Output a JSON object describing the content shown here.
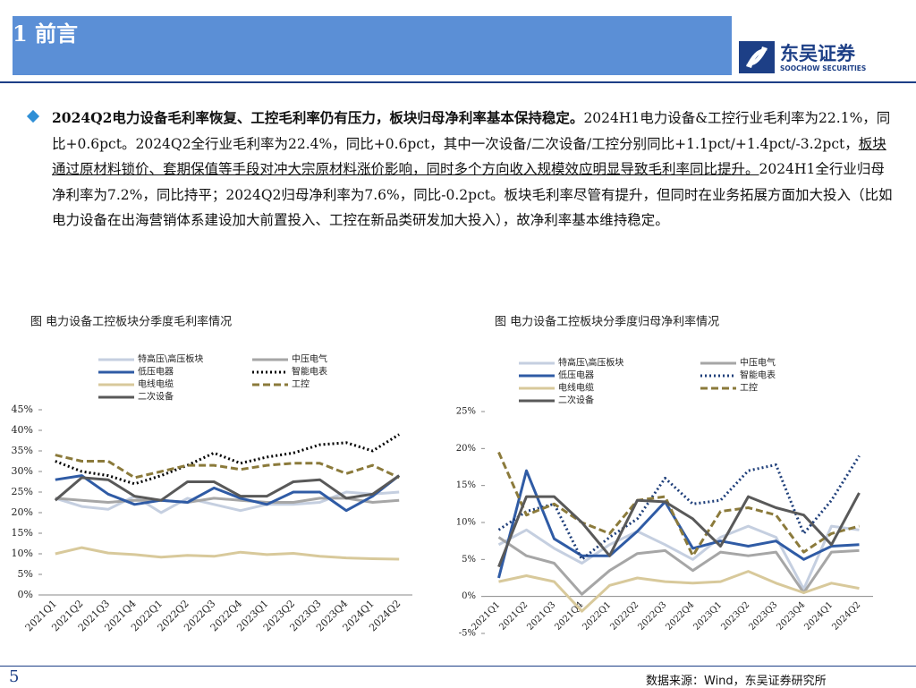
{
  "header": {
    "title": "1 前言",
    "logo_cn": "东吴证券",
    "logo_en": "SOOCHOW SECURITIES"
  },
  "paragraph": {
    "bold": "2024Q2电力设备毛利率恢复、工控毛利率仍有压力，板块归母净利率基本保持稳定。",
    "text1": "2024H1电力设备&工控行业毛利率为22.1%，同比+0.6pct。2024Q2全行业毛利率为22.4%，同比+0.6pct，其中一次设备/二次设备/工控分别同比+1.1pct/+1.4pct/-3.2pct，",
    "underlined": "板块通过原材料锁价、套期保值等手段对冲大宗原材料涨价影响，同时多个方向收入规模效应明显导致毛利率同比提升。",
    "text2": "2024H1全行业归母净利率为7.2%，同比持平；2024Q2归母净利率为7.6%，同比-0.2pct。板块毛利率尽管有提升，但同时在业务拓展方面加大投入（比如电力设备在出海营销体系建设加大前置投入、工控在新品类研发加大投入），故净利率基本维持稳定。"
  },
  "chart_data": [
    {
      "type": "line",
      "title": "图 电力设备工控板块分季度毛利率情况",
      "categories": [
        "2021Q1",
        "2021Q2",
        "2021Q3",
        "2021Q4",
        "2022Q1",
        "2022Q2",
        "2022Q3",
        "2022Q4",
        "2023Q1",
        "2023Q2",
        "2023Q3",
        "2023Q4",
        "2024Q1",
        "2024Q2"
      ],
      "ylim": [
        0,
        45
      ],
      "yticks": [
        {
          "value": 0,
          "label": "0%"
        },
        {
          "value": 5,
          "label": "5%"
        },
        {
          "value": 10,
          "label": "10%"
        },
        {
          "value": 15,
          "label": "15%"
        },
        {
          "value": 20,
          "label": "20%"
        },
        {
          "value": 25,
          "label": "25%"
        },
        {
          "value": 30,
          "label": "30%"
        },
        {
          "value": 35,
          "label": "35%"
        },
        {
          "value": 40,
          "label": "40%"
        },
        {
          "value": 45,
          "label": "45%"
        }
      ],
      "series": [
        {
          "name": "特高压\\高压板块",
          "color": "#c5cfe0",
          "style": "solid",
          "values": [
            23.5,
            21.5,
            20.8,
            24,
            20,
            23.5,
            22,
            20.5,
            22,
            22,
            22.5,
            25,
            24.5,
            25
          ]
        },
        {
          "name": "中压电气",
          "color": "#a6a6a6",
          "style": "solid",
          "values": [
            23.5,
            23,
            22.5,
            23,
            23,
            22.5,
            23.5,
            23,
            22.5,
            22.5,
            23.5,
            23.5,
            22.5,
            23
          ]
        },
        {
          "name": "低压电器",
          "color": "#2f5ba5",
          "style": "solid",
          "values": [
            28,
            29,
            24.5,
            22,
            23,
            22.5,
            26,
            23.5,
            22,
            25,
            25,
            20.5,
            24,
            29
          ]
        },
        {
          "name": "智能电表",
          "color": "#000000",
          "style": "dotted",
          "values": [
            32.5,
            30,
            29,
            27,
            29,
            31.5,
            34.5,
            32,
            33.5,
            34.5,
            36.5,
            37,
            35,
            39
          ]
        },
        {
          "name": "电线电缆",
          "color": "#d8c99b",
          "style": "solid",
          "values": [
            10,
            11.5,
            10.2,
            9.8,
            9.2,
            9.6,
            9.4,
            10.4,
            9.8,
            10.1,
            9.4,
            9,
            8.8,
            8.7
          ]
        },
        {
          "name": "工控",
          "color": "#8b7a3b",
          "style": "dashed",
          "values": [
            34,
            32.5,
            32.5,
            28.5,
            30,
            31.5,
            31.5,
            30.5,
            31.5,
            32,
            32,
            29.5,
            31.5,
            28.5
          ]
        },
        {
          "name": "二次设备",
          "color": "#595959",
          "style": "solid",
          "values": [
            23,
            28.5,
            28,
            24,
            23,
            27.5,
            27.5,
            24,
            24,
            27.5,
            28,
            23.5,
            24.5,
            29
          ]
        }
      ]
    },
    {
      "type": "line",
      "title": "图 电力设备工控板块分季度归母净利率情况",
      "categories": [
        "2021Q1",
        "2021Q2",
        "2021Q3",
        "2021Q4",
        "2022Q1",
        "2022Q2",
        "2022Q3",
        "2022Q4",
        "2023Q1",
        "2023Q2",
        "2023Q3",
        "2023Q4",
        "2024Q1",
        "2024Q2"
      ],
      "ylim": [
        -5,
        25
      ],
      "yticks": [
        {
          "value": -5,
          "label": "-5%"
        },
        {
          "value": 0,
          "label": "0%"
        },
        {
          "value": 5,
          "label": "5%"
        },
        {
          "value": 10,
          "label": "10%"
        },
        {
          "value": 15,
          "label": "15%"
        },
        {
          "value": 20,
          "label": "20%"
        },
        {
          "value": 25,
          "label": "25%"
        }
      ],
      "series": [
        {
          "name": "特高压\\高压板块",
          "color": "#c5cfe0",
          "style": "solid",
          "values": [
            7,
            9,
            6.5,
            4.5,
            7,
            8.8,
            7,
            5,
            8,
            9.5,
            8,
            1,
            9.5,
            9
          ]
        },
        {
          "name": "中压电气",
          "color": "#a6a6a6",
          "style": "solid",
          "values": [
            8,
            5.5,
            4.5,
            0.3,
            3.5,
            5.8,
            6.2,
            3.5,
            6,
            5.5,
            6,
            0.5,
            6,
            6.2
          ]
        },
        {
          "name": "低压电器",
          "color": "#2f5ba5",
          "style": "solid",
          "values": [
            2.5,
            17,
            7.8,
            5.5,
            5.5,
            8.8,
            12.8,
            6.5,
            7.5,
            6.8,
            7.5,
            5,
            6.8,
            7
          ]
        },
        {
          "name": "智能电表",
          "color": "#1f3f7a",
          "style": "dotted",
          "values": [
            9,
            11.5,
            12.5,
            5,
            8,
            10.5,
            16,
            12.5,
            13,
            17,
            17.8,
            8.5,
            13,
            19
          ]
        },
        {
          "name": "电线电缆",
          "color": "#d8c99b",
          "style": "solid",
          "values": [
            2,
            2.8,
            2,
            -2,
            1.5,
            2.5,
            2,
            1.8,
            2,
            3.4,
            1.8,
            0.5,
            1.8,
            1.1
          ]
        },
        {
          "name": "工控",
          "color": "#8b7a3b",
          "style": "dashed",
          "values": [
            19.5,
            11,
            12.5,
            10,
            8.5,
            13,
            13.5,
            5.5,
            11.5,
            12,
            11,
            6,
            8.5,
            9.5
          ]
        },
        {
          "name": "二次设备",
          "color": "#595959",
          "style": "solid",
          "values": [
            4,
            13.5,
            13.5,
            10,
            5.5,
            13,
            12.8,
            10.5,
            6.8,
            13.5,
            12,
            11,
            7,
            14
          ]
        }
      ]
    }
  ],
  "footer": {
    "page": 5,
    "source": "数据来源：Wind，东吴证券研究所"
  }
}
